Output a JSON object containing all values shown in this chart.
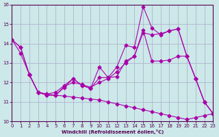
{
  "xlabel": "Windchill (Refroidissement éolien,°C)",
  "background_color": "#cce8e8",
  "grid_color": "#aaaacc",
  "line_color": "#aa00aa",
  "ylim": [
    10,
    16
  ],
  "xlim": [
    0,
    23
  ],
  "yticks": [
    10,
    11,
    12,
    13,
    14,
    15,
    16
  ],
  "xticks": [
    0,
    1,
    2,
    3,
    4,
    5,
    6,
    7,
    8,
    9,
    10,
    11,
    12,
    13,
    14,
    15,
    16,
    17,
    18,
    19,
    20,
    21,
    22,
    23
  ],
  "line1_x": [
    0,
    1,
    2,
    3,
    4,
    5,
    6,
    7,
    8,
    9,
    10,
    11,
    12,
    13,
    14,
    15,
    16,
    17,
    18,
    19,
    20,
    21,
    22,
    23
  ],
  "line1_y": [
    14.2,
    13.8,
    12.4,
    11.5,
    11.4,
    11.5,
    11.85,
    12.2,
    11.85,
    11.7,
    12.8,
    12.25,
    12.8,
    13.9,
    13.8,
    15.9,
    14.8,
    14.45,
    14.65,
    14.75,
    13.35,
    12.2,
    11.0,
    10.4
  ],
  "line2_x": [
    0,
    1,
    2,
    3,
    4,
    5,
    6,
    7,
    8,
    9,
    10,
    11,
    12,
    13,
    14,
    15,
    16,
    17,
    18,
    19,
    20,
    21,
    22,
    23
  ],
  "line2_y": [
    14.2,
    13.5,
    12.4,
    11.5,
    11.35,
    11.35,
    11.8,
    12.0,
    11.9,
    11.75,
    12.0,
    12.2,
    12.55,
    13.0,
    13.35,
    14.55,
    14.45,
    14.5,
    14.65,
    14.75,
    13.35,
    12.2,
    11.0,
    10.4
  ],
  "line3_x": [
    2,
    3,
    4,
    5,
    6,
    7,
    8,
    9,
    10,
    11,
    12,
    13,
    14,
    15,
    16,
    17,
    18,
    19,
    20,
    21,
    22,
    23
  ],
  "line3_y": [
    12.4,
    11.5,
    11.35,
    11.35,
    11.75,
    12.2,
    11.85,
    11.7,
    12.25,
    12.25,
    12.3,
    13.1,
    13.35,
    14.7,
    13.1,
    13.1,
    13.15,
    13.35,
    13.35,
    12.2,
    11.0,
    10.4
  ],
  "line4_x": [
    0,
    1,
    2,
    3,
    4,
    5,
    6,
    7,
    8,
    9,
    10,
    11,
    12,
    13,
    14,
    15,
    16,
    17,
    18,
    19,
    20,
    21,
    22,
    23
  ],
  "line4_y": [
    14.2,
    13.8,
    12.4,
    11.5,
    11.4,
    11.35,
    11.3,
    11.25,
    11.2,
    11.15,
    11.1,
    11.0,
    10.9,
    10.8,
    10.7,
    10.6,
    10.5,
    10.4,
    10.3,
    10.2,
    10.1,
    10.2,
    10.3,
    10.4
  ]
}
